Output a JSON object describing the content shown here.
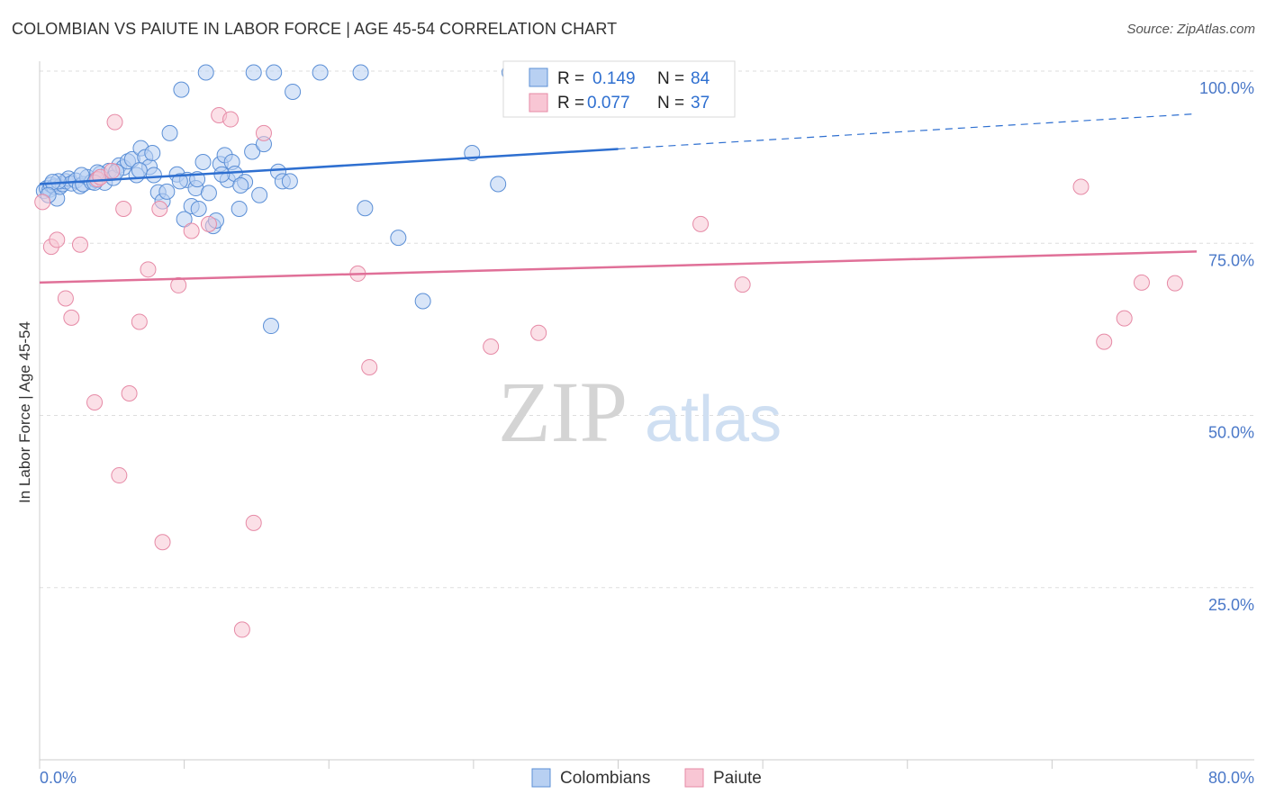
{
  "title": "COLOMBIAN VS PAIUTE IN LABOR FORCE | AGE 45-54 CORRELATION CHART",
  "source": "Source: ZipAtlas.com",
  "watermark": {
    "zip": "ZIP",
    "atlas": "atlas"
  },
  "colors": {
    "blue_fill": "#b8d0f2",
    "blue_stroke": "#5b8fd6",
    "blue_line": "#2e6fd0",
    "pink_fill": "#f8c6d4",
    "pink_stroke": "#e68aa6",
    "pink_line": "#e07098",
    "axis_text": "#4a78c8",
    "grid": "#dedede"
  },
  "legend_box": {
    "rows": [
      {
        "r_label": "R = ",
        "r_value": "0.149",
        "n_label": "N = ",
        "n_value": "84"
      },
      {
        "r_label": "R = ",
        "r_value": "0.077",
        "n_label": "N = ",
        "n_value": "37"
      }
    ]
  },
  "bottom_legend": [
    "Colombians",
    "Paiute"
  ],
  "chart_data": {
    "type": "scatter",
    "title": "COLOMBIAN VS PAIUTE IN LABOR FORCE | AGE 45-54 CORRELATION CHART",
    "xlabel": "",
    "ylabel": "In Labor Force | Age 45-54",
    "xlim": [
      0,
      80
    ],
    "ylim": [
      0,
      100
    ],
    "x_tick_labels": [
      "0.0%",
      "80.0%"
    ],
    "y_ticks": [
      25,
      50,
      75,
      100
    ],
    "y_tick_labels": [
      "25.0%",
      "50.0%",
      "75.0%",
      "100.0%"
    ],
    "grid": true,
    "legend_position": "top-center",
    "series": [
      {
        "name": "Colombians",
        "color": "#5b8fd6",
        "r": 0.149,
        "n": 84,
        "trend": {
          "x0": 0,
          "y0": 83.6,
          "x1": 40,
          "y1": 88.7,
          "dashed_to_x": 80,
          "dashed_to_y": 93.8
        },
        "points": [
          [
            0.3,
            82.6
          ],
          [
            0.5,
            83.0
          ],
          [
            0.7,
            82.8
          ],
          [
            0.8,
            83.5
          ],
          [
            1.0,
            83.2
          ],
          [
            1.2,
            81.5
          ],
          [
            1.4,
            83.2
          ],
          [
            1.6,
            83.6
          ],
          [
            1.8,
            84.0
          ],
          [
            2.0,
            84.4
          ],
          [
            2.2,
            83.7
          ],
          [
            2.5,
            84.1
          ],
          [
            2.8,
            83.3
          ],
          [
            3.0,
            83.6
          ],
          [
            3.3,
            84.6
          ],
          [
            3.6,
            83.9
          ],
          [
            3.9,
            84.2
          ],
          [
            4.2,
            85.1
          ],
          [
            4.5,
            83.8
          ],
          [
            4.8,
            85.5
          ],
          [
            5.1,
            84.5
          ],
          [
            5.5,
            86.3
          ],
          [
            5.8,
            86.0
          ],
          [
            6.1,
            86.9
          ],
          [
            6.4,
            87.2
          ],
          [
            6.7,
            84.9
          ],
          [
            7.0,
            88.8
          ],
          [
            7.3,
            87.5
          ],
          [
            7.6,
            86.1
          ],
          [
            7.9,
            84.9
          ],
          [
            8.2,
            82.4
          ],
          [
            8.5,
            81.1
          ],
          [
            9.0,
            91.0
          ],
          [
            9.5,
            85.0
          ],
          [
            9.8,
            97.3
          ],
          [
            10.0,
            78.5
          ],
          [
            10.2,
            84.2
          ],
          [
            10.5,
            80.4
          ],
          [
            10.8,
            83.0
          ],
          [
            11.0,
            80.0
          ],
          [
            11.3,
            86.8
          ],
          [
            11.7,
            82.3
          ],
          [
            12.0,
            77.5
          ],
          [
            12.5,
            86.5
          ],
          [
            12.8,
            87.8
          ],
          [
            13.0,
            84.2
          ],
          [
            13.3,
            86.8
          ],
          [
            13.5,
            85.1
          ],
          [
            13.8,
            80.0
          ],
          [
            14.2,
            83.9
          ],
          [
            14.7,
            88.3
          ],
          [
            15.5,
            89.4
          ],
          [
            16.0,
            63.0
          ],
          [
            16.5,
            85.4
          ],
          [
            16.8,
            84.0
          ],
          [
            17.3,
            84.0
          ],
          [
            11.5,
            99.8
          ],
          [
            14.8,
            99.8
          ],
          [
            16.2,
            99.8
          ],
          [
            17.5,
            97.0
          ],
          [
            19.4,
            99.8
          ],
          [
            22.2,
            99.8
          ],
          [
            22.5,
            80.1
          ],
          [
            24.8,
            75.8
          ],
          [
            26.5,
            66.6
          ],
          [
            29.9,
            88.1
          ],
          [
            31.7,
            83.6
          ],
          [
            32.5,
            99.8
          ],
          [
            12.2,
            78.3
          ],
          [
            8.8,
            82.5
          ],
          [
            6.9,
            85.6
          ],
          [
            5.3,
            85.4
          ],
          [
            4.0,
            85.3
          ],
          [
            2.9,
            84.9
          ],
          [
            1.3,
            84.0
          ],
          [
            0.9,
            83.9
          ],
          [
            0.6,
            82.0
          ],
          [
            3.8,
            83.8
          ],
          [
            9.7,
            84.0
          ],
          [
            12.6,
            85.0
          ],
          [
            15.2,
            82.0
          ],
          [
            7.8,
            88.1
          ],
          [
            10.9,
            84.3
          ],
          [
            13.9,
            83.4
          ]
        ]
      },
      {
        "name": "Paiute",
        "color": "#e68aa6",
        "r": 0.077,
        "n": 37,
        "trend": {
          "x0": 0,
          "y0": 69.3,
          "x1": 80,
          "y1": 73.8
        },
        "points": [
          [
            0.2,
            81.0
          ],
          [
            0.8,
            74.5
          ],
          [
            1.2,
            75.5
          ],
          [
            1.8,
            67.0
          ],
          [
            2.2,
            64.2
          ],
          [
            2.8,
            74.8
          ],
          [
            3.8,
            51.9
          ],
          [
            4.0,
            84.3
          ],
          [
            4.2,
            84.6
          ],
          [
            5.0,
            85.5
          ],
          [
            5.2,
            92.6
          ],
          [
            5.5,
            41.3
          ],
          [
            5.8,
            80.0
          ],
          [
            6.2,
            53.2
          ],
          [
            6.9,
            63.6
          ],
          [
            7.5,
            71.2
          ],
          [
            8.3,
            80.0
          ],
          [
            8.5,
            31.6
          ],
          [
            9.6,
            68.9
          ],
          [
            10.5,
            76.8
          ],
          [
            11.7,
            77.8
          ],
          [
            12.4,
            93.6
          ],
          [
            13.2,
            93.0
          ],
          [
            14.0,
            18.9
          ],
          [
            14.8,
            34.4
          ],
          [
            15.5,
            91.0
          ],
          [
            22.0,
            70.6
          ],
          [
            22.8,
            57.0
          ],
          [
            31.2,
            60.0
          ],
          [
            34.5,
            62.0
          ],
          [
            45.7,
            77.8
          ],
          [
            48.6,
            69.0
          ],
          [
            72.0,
            83.2
          ],
          [
            73.6,
            60.7
          ],
          [
            75.0,
            64.1
          ],
          [
            76.2,
            69.3
          ],
          [
            78.5,
            69.2
          ]
        ]
      }
    ]
  }
}
